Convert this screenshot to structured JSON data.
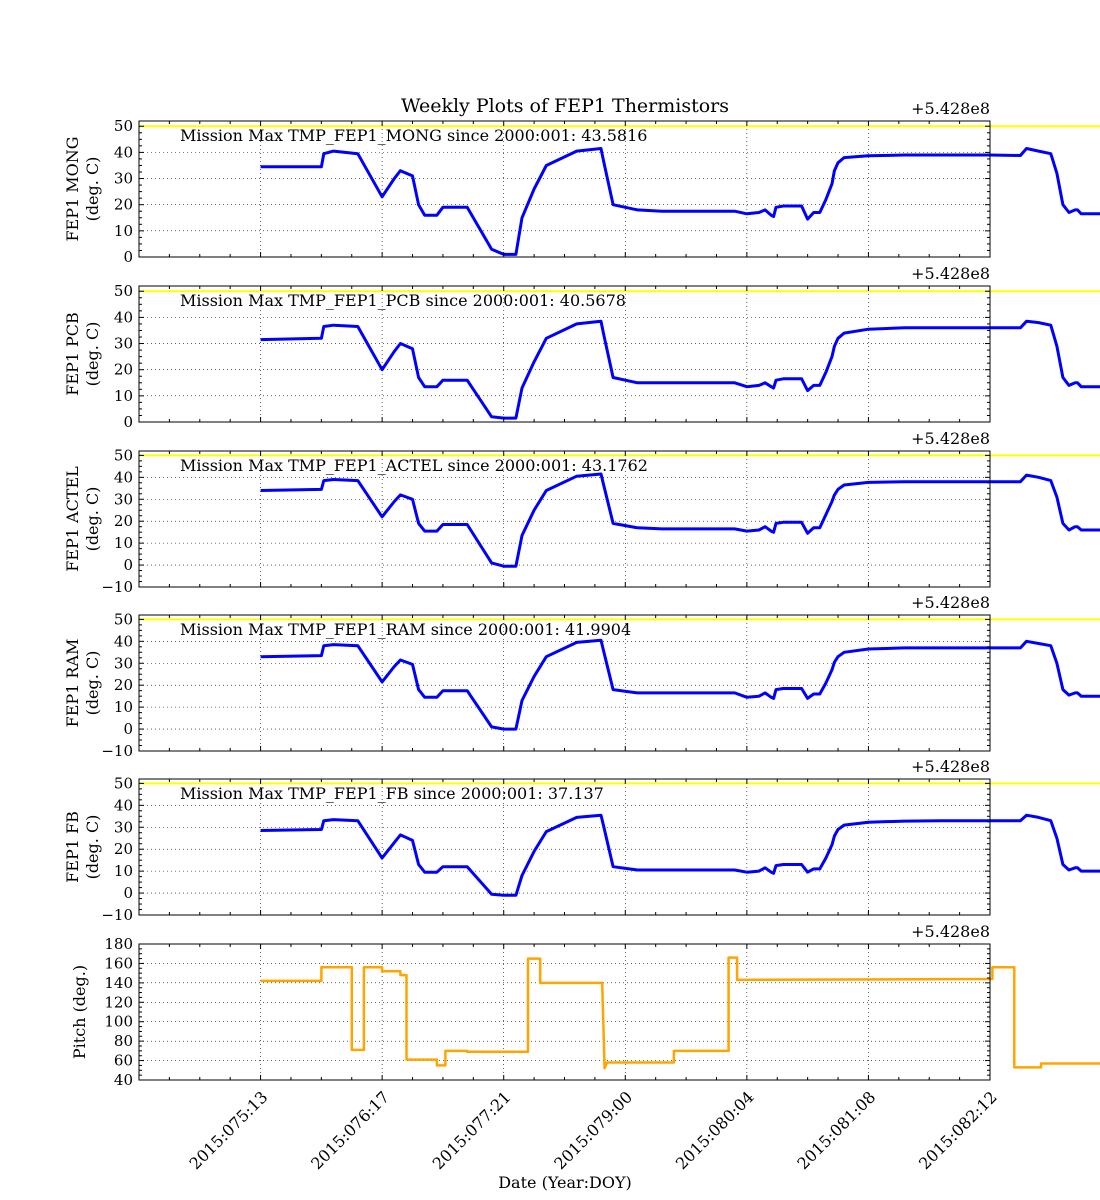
{
  "figure": {
    "title": "Weekly Plots of FEP1 Thermistors",
    "xlabel": "Date (Year:DOY)",
    "offset_label": "+5.428e8",
    "x_ticks": [
      "2015:075:13",
      "2015:076:17",
      "2015:077:21",
      "2015:079:00",
      "2015:080:04",
      "2015:081:08",
      "2015:082:12"
    ]
  },
  "colors": {
    "temperature": "#0000ff",
    "pitch": "#ffa500",
    "limit_line": "#ffff00",
    "grid": "#000000"
  },
  "chart_data": [
    {
      "type": "line",
      "ylabel": [
        "FEP1 MONG",
        "(deg. C)"
      ],
      "annotation": "Mission Max TMP_FEP1_MONG since 2000:001: 43.5816",
      "ylim": [
        0,
        52
      ],
      "yticks": [
        0,
        10,
        20,
        30,
        40,
        50
      ],
      "limit": 50,
      "x": [
        0,
        0.5,
        0.52,
        0.6,
        0.8,
        1.0,
        1.1,
        1.15,
        1.25,
        1.3,
        1.35,
        1.45,
        1.5,
        1.7,
        1.9,
        2.0,
        2.05,
        2.1,
        2.15,
        2.25,
        2.35,
        2.6,
        2.8,
        2.82,
        2.9,
        3.1,
        3.3,
        3.6,
        3.9,
        4.0,
        4.1,
        4.15,
        4.2,
        4.22,
        4.24,
        4.3,
        4.35,
        4.42,
        4.45,
        4.5,
        4.55,
        4.6,
        4.65,
        4.7,
        4.72,
        4.75,
        4.8,
        5.0,
        5.3,
        5.6,
        6.0,
        6.25,
        6.3,
        6.4,
        6.5,
        6.55,
        6.6,
        6.65,
        6.7,
        6.72,
        6.75,
        6.8,
        6.85,
        7.1
      ],
      "values": [
        34.5,
        34.5,
        39.5,
        40.5,
        39.5,
        23,
        30,
        33,
        31,
        20,
        16,
        16,
        19,
        19,
        3,
        1,
        1,
        1,
        15,
        26,
        35,
        40.5,
        41.5,
        37,
        20,
        18,
        17.5,
        17.5,
        17.5,
        16.5,
        17,
        18,
        16,
        15.5,
        19,
        19.5,
        19.5,
        19.5,
        19.5,
        14.5,
        17,
        17,
        22,
        28,
        33,
        36,
        38,
        38.7,
        39,
        39,
        39,
        38.8,
        41.5,
        40.5,
        39.5,
        32,
        20,
        17,
        18,
        18,
        16.5,
        16.5,
        16.5,
        16.5
      ]
    },
    {
      "type": "line",
      "ylabel": [
        "FEP1 PCB",
        "(deg. C)"
      ],
      "annotation": "Mission Max TMP_FEP1_PCB since 2000:001: 40.5678",
      "ylim": [
        0,
        52
      ],
      "yticks": [
        0,
        10,
        20,
        30,
        40,
        50
      ],
      "limit": 50,
      "x": [
        0,
        0.5,
        0.52,
        0.6,
        0.8,
        1.0,
        1.1,
        1.15,
        1.25,
        1.3,
        1.35,
        1.45,
        1.5,
        1.7,
        1.9,
        2.0,
        2.05,
        2.1,
        2.15,
        2.25,
        2.35,
        2.6,
        2.8,
        2.82,
        2.9,
        3.1,
        3.3,
        3.6,
        3.9,
        4.0,
        4.1,
        4.15,
        4.2,
        4.22,
        4.24,
        4.3,
        4.35,
        4.42,
        4.45,
        4.5,
        4.55,
        4.6,
        4.65,
        4.7,
        4.72,
        4.75,
        4.8,
        5.0,
        5.3,
        5.6,
        6.0,
        6.25,
        6.3,
        6.4,
        6.5,
        6.55,
        6.6,
        6.65,
        6.7,
        6.72,
        6.75,
        6.8,
        6.85,
        7.1
      ],
      "values": [
        31.5,
        32,
        36.5,
        37,
        36.5,
        20,
        27,
        30,
        28,
        17,
        13.5,
        13.5,
        16,
        16,
        2,
        1.5,
        1.5,
        1.5,
        13,
        23,
        32,
        37.5,
        38.5,
        34,
        17,
        15,
        15,
        15,
        15,
        13.5,
        14,
        15,
        13.5,
        13,
        16,
        16.5,
        16.5,
        16.5,
        16.5,
        12,
        14,
        14,
        19,
        25,
        29,
        32,
        34,
        35.5,
        36,
        36,
        36,
        36,
        38.5,
        38,
        37,
        29,
        17,
        14,
        15,
        15,
        13.5,
        13.5,
        13.5,
        13.5
      ]
    },
    {
      "type": "line",
      "ylabel": [
        "FEP1 ACTEL",
        "(deg. C)"
      ],
      "annotation": "Mission Max TMP_FEP1_ACTEL since 2000:001: 43.1762",
      "ylim": [
        -10,
        52
      ],
      "yticks": [
        -10,
        0,
        10,
        20,
        30,
        40,
        50
      ],
      "limit": 50,
      "x": [
        0,
        0.5,
        0.52,
        0.6,
        0.8,
        1.0,
        1.1,
        1.15,
        1.25,
        1.3,
        1.35,
        1.45,
        1.5,
        1.7,
        1.9,
        2.0,
        2.05,
        2.1,
        2.15,
        2.25,
        2.35,
        2.6,
        2.8,
        2.82,
        2.9,
        3.1,
        3.3,
        3.6,
        3.9,
        4.0,
        4.1,
        4.15,
        4.2,
        4.22,
        4.24,
        4.3,
        4.35,
        4.42,
        4.45,
        4.5,
        4.55,
        4.6,
        4.65,
        4.7,
        4.72,
        4.75,
        4.8,
        5.0,
        5.3,
        5.6,
        6.0,
        6.25,
        6.3,
        6.4,
        6.5,
        6.55,
        6.6,
        6.65,
        6.7,
        6.72,
        6.75,
        6.8,
        6.85,
        7.1
      ],
      "values": [
        34,
        34.5,
        38.5,
        39,
        38.5,
        22,
        29,
        32,
        30,
        19,
        15.5,
        15.5,
        18.5,
        18.5,
        1,
        -0.5,
        -0.5,
        -0.5,
        13.5,
        25,
        34,
        40.5,
        41.5,
        37,
        19,
        17,
        16.5,
        16.5,
        16.5,
        15.5,
        16,
        17.5,
        15.5,
        15,
        19,
        19.5,
        19.5,
        19.5,
        19.5,
        14.5,
        17,
        17,
        23,
        29,
        32,
        34.5,
        36.5,
        37.7,
        38,
        38,
        38,
        38,
        41,
        40,
        38.5,
        31,
        19,
        16,
        17.5,
        17.5,
        16,
        16,
        16,
        16
      ]
    },
    {
      "type": "line",
      "ylabel": [
        "FEP1 RAM",
        "(deg. C)"
      ],
      "annotation": "Mission Max TMP_FEP1_RAM since 2000:001: 41.9904",
      "ylim": [
        -10,
        52
      ],
      "yticks": [
        -10,
        0,
        10,
        20,
        30,
        40,
        50
      ],
      "limit": 50,
      "x": [
        0,
        0.5,
        0.52,
        0.6,
        0.8,
        1.0,
        1.1,
        1.15,
        1.25,
        1.3,
        1.35,
        1.45,
        1.5,
        1.7,
        1.9,
        2.0,
        2.05,
        2.1,
        2.15,
        2.25,
        2.35,
        2.6,
        2.8,
        2.82,
        2.9,
        3.1,
        3.3,
        3.6,
        3.9,
        4.0,
        4.1,
        4.15,
        4.2,
        4.22,
        4.24,
        4.3,
        4.35,
        4.42,
        4.45,
        4.5,
        4.55,
        4.6,
        4.65,
        4.7,
        4.72,
        4.75,
        4.8,
        5.0,
        5.3,
        5.6,
        6.0,
        6.25,
        6.3,
        6.4,
        6.5,
        6.55,
        6.6,
        6.65,
        6.7,
        6.72,
        6.75,
        6.8,
        6.85,
        7.1
      ],
      "values": [
        33,
        33.5,
        38,
        38.5,
        38,
        21.5,
        28.5,
        31.5,
        29.5,
        18,
        14.5,
        14.5,
        17.5,
        17.5,
        1,
        0,
        0,
        0,
        13,
        24,
        33,
        39.5,
        40.5,
        36,
        18,
        16.5,
        16.5,
        16.5,
        16.5,
        14.5,
        15,
        16.5,
        14.5,
        14,
        18,
        18.5,
        18.5,
        18.5,
        18.5,
        14,
        16,
        16,
        21,
        27,
        30.5,
        33,
        35,
        36.5,
        37,
        37,
        37,
        37,
        40,
        39,
        38,
        30,
        18,
        15.5,
        16.5,
        16.5,
        15,
        15,
        15,
        15
      ]
    },
    {
      "type": "line",
      "ylabel": [
        "FEP1 FB",
        "(deg. C)"
      ],
      "annotation": "Mission Max TMP_FEP1_FB since 2000:001: 37.137",
      "ylim": [
        -10,
        52
      ],
      "yticks": [
        -10,
        0,
        10,
        20,
        30,
        40,
        50
      ],
      "limit": 50,
      "x": [
        0,
        0.5,
        0.52,
        0.6,
        0.8,
        1.0,
        1.1,
        1.15,
        1.25,
        1.3,
        1.35,
        1.45,
        1.5,
        1.7,
        1.9,
        2.0,
        2.05,
        2.1,
        2.15,
        2.25,
        2.35,
        2.6,
        2.8,
        2.82,
        2.9,
        3.1,
        3.3,
        3.6,
        3.9,
        4.0,
        4.1,
        4.15,
        4.2,
        4.22,
        4.24,
        4.3,
        4.35,
        4.42,
        4.45,
        4.5,
        4.55,
        4.6,
        4.65,
        4.7,
        4.72,
        4.75,
        4.8,
        5.0,
        5.3,
        5.6,
        6.0,
        6.25,
        6.3,
        6.4,
        6.5,
        6.55,
        6.6,
        6.65,
        6.7,
        6.72,
        6.75,
        6.8,
        6.85,
        7.1
      ],
      "values": [
        28.5,
        29,
        33,
        33.5,
        33,
        16,
        23,
        26.5,
        24,
        13,
        9.5,
        9.5,
        12,
        12,
        -0.5,
        -1,
        -1,
        -1,
        8,
        19,
        28,
        34.5,
        35.5,
        31,
        12,
        10.5,
        10.5,
        10.5,
        10.5,
        9.5,
        10,
        11.5,
        9.5,
        9,
        12.5,
        13,
        13,
        13,
        13,
        9.5,
        11,
        11,
        16,
        22,
        26,
        29,
        31,
        32.3,
        32.8,
        33,
        33,
        33,
        35.5,
        34.5,
        33,
        25,
        13,
        10.5,
        11.5,
        11.5,
        10,
        10,
        10,
        10
      ]
    },
    {
      "type": "line",
      "ylabel": [
        "Pitch (deg.)"
      ],
      "annotation": "",
      "ylim": [
        40,
        180
      ],
      "yticks": [
        40,
        60,
        80,
        100,
        120,
        140,
        160,
        180
      ],
      "limit": null,
      "x": [
        0,
        0.5,
        0.5,
        0.75,
        0.75,
        0.85,
        0.85,
        1.0,
        1.0,
        1.15,
        1.15,
        1.2,
        1.2,
        1.45,
        1.45,
        1.52,
        1.52,
        1.7,
        1.7,
        2.2,
        2.2,
        2.3,
        2.3,
        2.81,
        2.83,
        2.85,
        2.85,
        3.4,
        3.4,
        3.85,
        3.85,
        3.92,
        3.92,
        6.02,
        6.02,
        6.2,
        6.2,
        6.42,
        6.42,
        6.65,
        6.65,
        7.1
      ],
      "values": [
        142,
        142,
        156,
        156,
        71,
        71,
        156,
        156,
        152,
        152,
        148,
        148,
        61,
        61,
        55,
        55,
        70,
        70,
        69,
        69,
        165,
        165,
        140,
        140,
        52,
        58,
        58,
        58,
        70,
        70,
        166,
        166,
        143,
        144,
        156,
        156,
        53,
        53,
        57,
        57,
        57,
        57
      ]
    }
  ]
}
